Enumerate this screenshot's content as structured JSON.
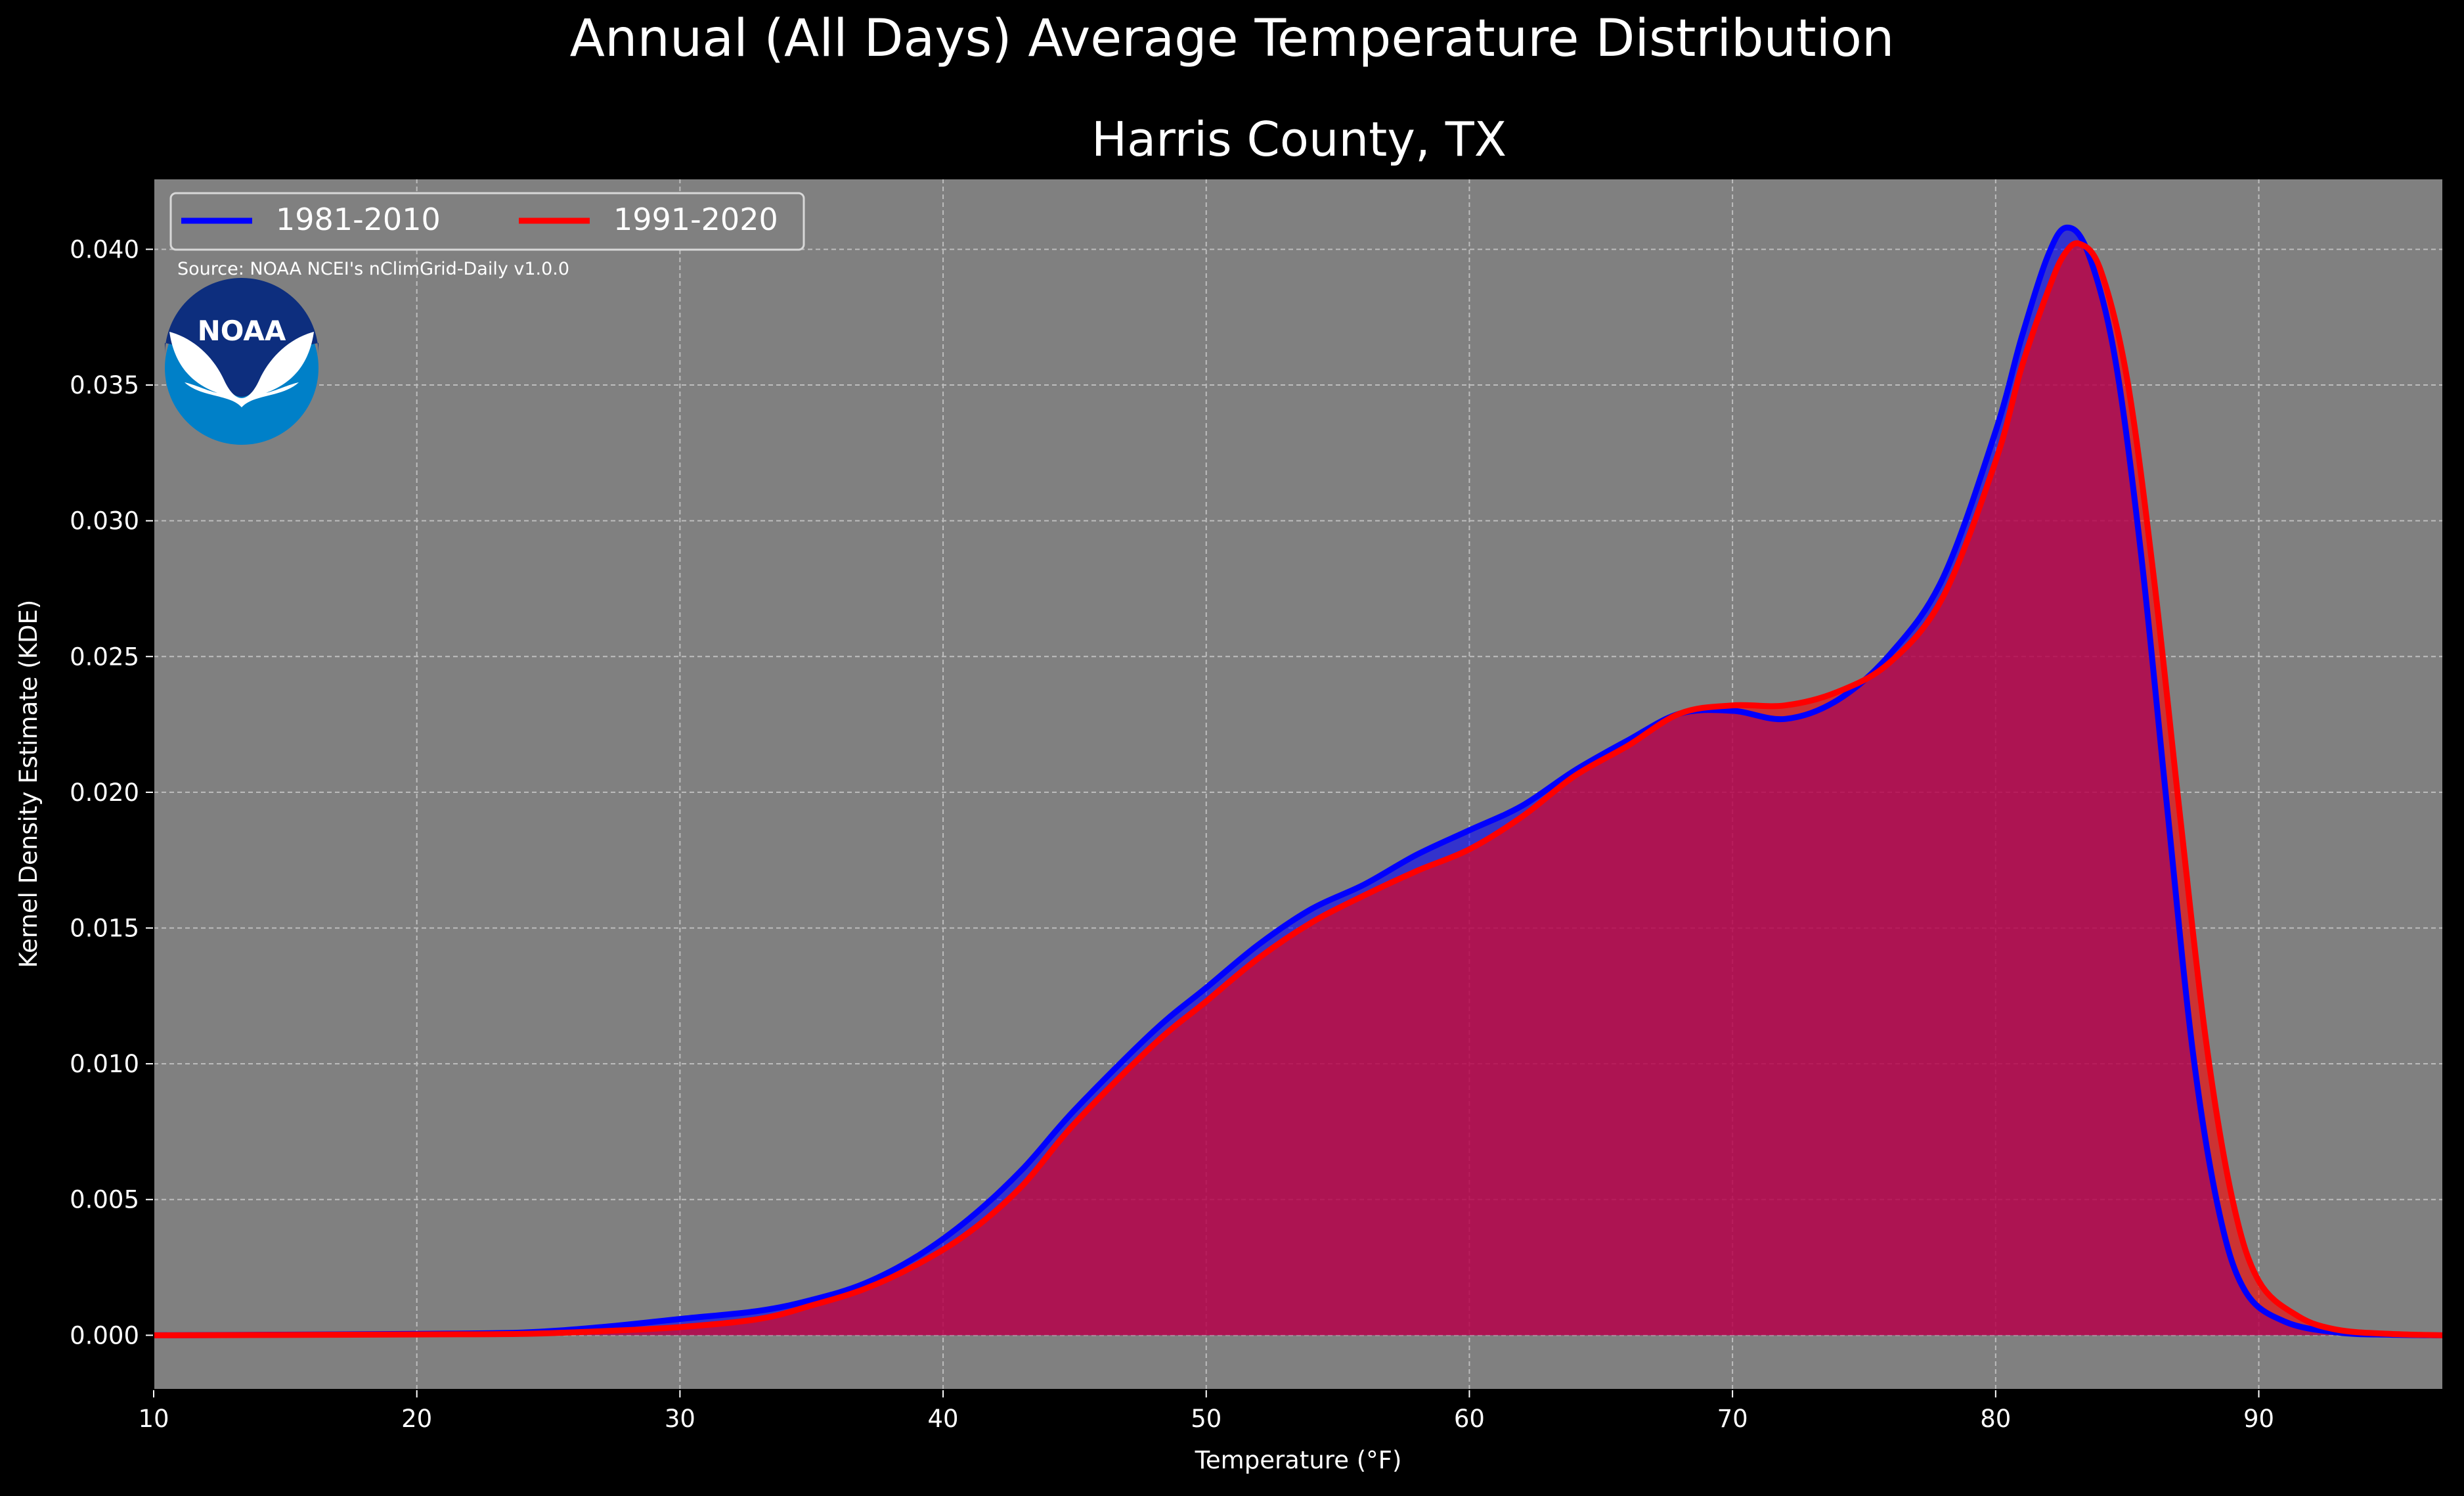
{
  "chart_data": {
    "type": "area",
    "title": "Annual (All Days) Average Temperature Distribution",
    "subtitle": "Harris County, TX",
    "xlabel": "Temperature (°F)",
    "ylabel": "Kernel Density Estimate (KDE)",
    "source": "Source: NOAA NCEI's nClimGrid-Daily v1.0.0",
    "logo_text": "NOAA",
    "xlim": [
      10,
      97
    ],
    "ylim": [
      -0.002,
      0.0426
    ],
    "x_ticks": [
      "10",
      "20",
      "30",
      "40",
      "50",
      "60",
      "70",
      "80",
      "90"
    ],
    "y_ticks": [
      "0.000",
      "0.005",
      "0.010",
      "0.015",
      "0.020",
      "0.025",
      "0.030",
      "0.035",
      "0.040"
    ],
    "grid": true,
    "legend_position": "top-left",
    "background": "#808080",
    "series": [
      {
        "name": "1981-2010",
        "color": "#0000ff",
        "points": [
          [
            10,
            0
          ],
          [
            15,
            2e-05
          ],
          [
            20,
            5e-05
          ],
          [
            24,
            0.0001
          ],
          [
            27,
            0.0003
          ],
          [
            30,
            0.0006
          ],
          [
            33,
            0.0009
          ],
          [
            35,
            0.0013
          ],
          [
            37,
            0.0019
          ],
          [
            39,
            0.0029
          ],
          [
            41,
            0.0043
          ],
          [
            43,
            0.0061
          ],
          [
            45,
            0.0083
          ],
          [
            48,
            0.0112
          ],
          [
            50,
            0.0128
          ],
          [
            52,
            0.0144
          ],
          [
            54,
            0.0157
          ],
          [
            56,
            0.0166
          ],
          [
            58,
            0.0177
          ],
          [
            60,
            0.0186
          ],
          [
            62,
            0.0195
          ],
          [
            64,
            0.0208
          ],
          [
            66,
            0.0219
          ],
          [
            68,
            0.0229
          ],
          [
            70,
            0.023
          ],
          [
            72,
            0.0227
          ],
          [
            74,
            0.0234
          ],
          [
            76,
            0.0251
          ],
          [
            78,
            0.0279
          ],
          [
            80,
            0.0333
          ],
          [
            81,
            0.0368
          ],
          [
            82,
            0.0398
          ],
          [
            82.7,
            0.0408
          ],
          [
            83.5,
            0.0399
          ],
          [
            84.5,
            0.0362
          ],
          [
            85.5,
            0.029
          ],
          [
            86.5,
            0.0196
          ],
          [
            87.5,
            0.0104
          ],
          [
            88.5,
            0.0045
          ],
          [
            89.5,
            0.0016
          ],
          [
            91,
            0.0005
          ],
          [
            93,
            0.0001
          ],
          [
            95,
            2e-05
          ],
          [
            97,
            0
          ]
        ]
      },
      {
        "name": "1991-2020",
        "color": "#ff0000",
        "points": [
          [
            10,
            0
          ],
          [
            15,
            1e-05
          ],
          [
            20,
            3e-05
          ],
          [
            24,
            5e-05
          ],
          [
            27,
            0.00015
          ],
          [
            30,
            0.0003
          ],
          [
            33,
            0.0006
          ],
          [
            35,
            0.0011
          ],
          [
            37,
            0.0017
          ],
          [
            39,
            0.0026
          ],
          [
            41,
            0.0038
          ],
          [
            43,
            0.0055
          ],
          [
            45,
            0.0078
          ],
          [
            48,
            0.0107
          ],
          [
            50,
            0.0123
          ],
          [
            52,
            0.0139
          ],
          [
            54,
            0.0152
          ],
          [
            56,
            0.0162
          ],
          [
            58,
            0.0171
          ],
          [
            60,
            0.0179
          ],
          [
            62,
            0.0191
          ],
          [
            64,
            0.0206
          ],
          [
            66,
            0.0217
          ],
          [
            68,
            0.0229
          ],
          [
            70,
            0.0232
          ],
          [
            72,
            0.0232
          ],
          [
            74,
            0.0237
          ],
          [
            76,
            0.0248
          ],
          [
            78,
            0.0272
          ],
          [
            80,
            0.0322
          ],
          [
            81,
            0.0357
          ],
          [
            82,
            0.0385
          ],
          [
            82.6,
            0.0398
          ],
          [
            83.2,
            0.0402
          ],
          [
            84,
            0.0392
          ],
          [
            85,
            0.0352
          ],
          [
            86,
            0.028
          ],
          [
            87,
            0.0192
          ],
          [
            88,
            0.0108
          ],
          [
            89,
            0.005
          ],
          [
            90,
            0.002
          ],
          [
            91.5,
            0.0007
          ],
          [
            93,
            0.0002
          ],
          [
            95,
            5e-05
          ],
          [
            97,
            0
          ]
        ]
      }
    ]
  }
}
